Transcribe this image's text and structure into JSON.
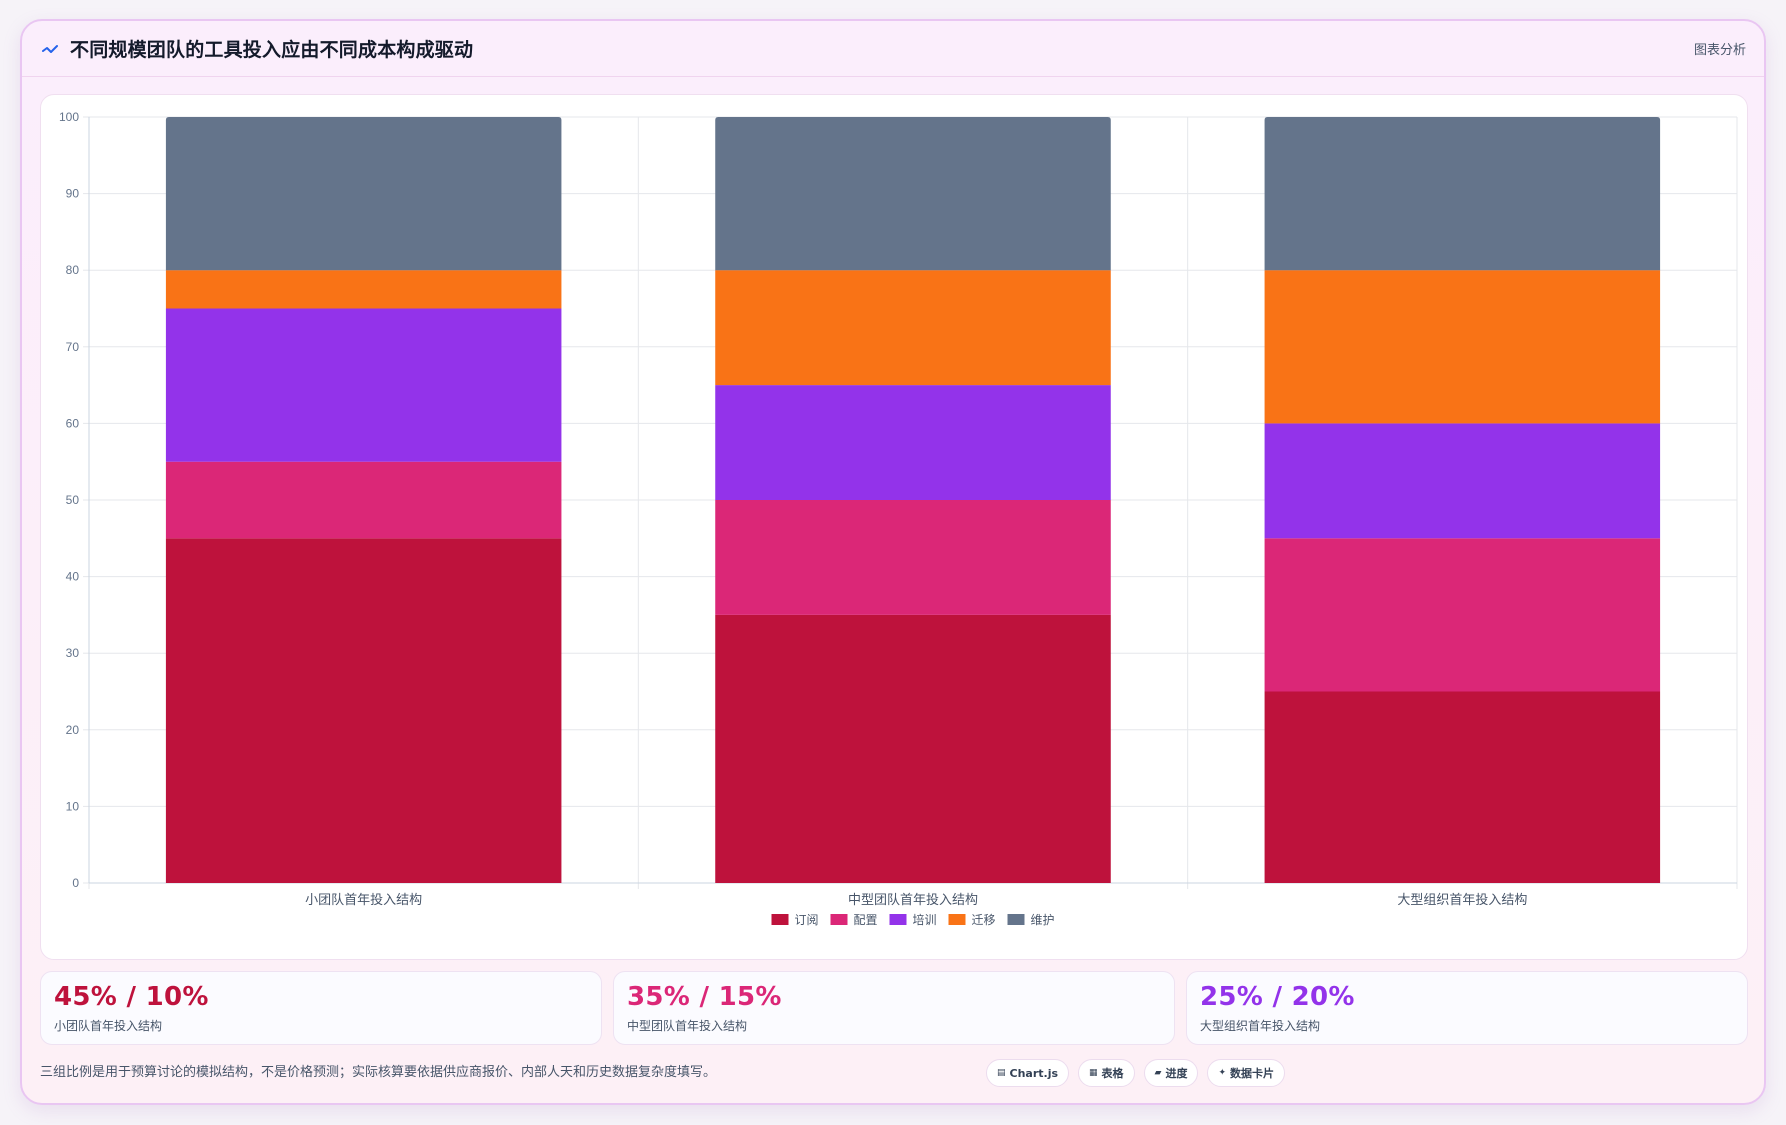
{
  "header": {
    "title": "不同规模团队的工具投入应由不同成本构成驱动",
    "action_label": "图表分析"
  },
  "chart_data": {
    "type": "bar",
    "stacked": true,
    "categories": [
      "小团队首年投入结构",
      "中型团队首年投入结构",
      "大型组织首年投入结构"
    ],
    "series": [
      {
        "name": "订阅",
        "color": "#be123c",
        "values": [
          45,
          35,
          25
        ]
      },
      {
        "name": "配置",
        "color": "#db2777",
        "values": [
          10,
          15,
          20
        ]
      },
      {
        "name": "培训",
        "color": "#9333ea",
        "values": [
          20,
          15,
          15
        ]
      },
      {
        "name": "迁移",
        "color": "#f97316",
        "values": [
          5,
          15,
          20
        ]
      },
      {
        "name": "维护",
        "color": "#64748b",
        "values": [
          20,
          20,
          20
        ]
      }
    ],
    "ylim": [
      0,
      100
    ],
    "yticks": [
      "0",
      "10",
      "20",
      "30",
      "40",
      "50",
      "60",
      "70",
      "80",
      "90",
      "100"
    ],
    "grid": true,
    "legend_position": "bottom"
  },
  "stats": [
    {
      "value": "45% / 10%",
      "label": "小团队首年投入结构",
      "color": "#be123c"
    },
    {
      "value": "35% / 15%",
      "label": "中型团队首年投入结构",
      "color": "#db2777"
    },
    {
      "value": "25% / 20%",
      "label": "大型组织首年投入结构",
      "color": "#9333ea"
    }
  ],
  "footnote": "三组比例是用于预算讨论的模拟结构，不是价格预测；实际核算要依据供应商报价、内部人天和历史数据复杂度填写。",
  "chips": [
    {
      "icon": "chart-icon",
      "glyph": "▤",
      "label": "Chart.js"
    },
    {
      "icon": "table-icon",
      "glyph": "▦",
      "label": "表格"
    },
    {
      "icon": "progress-icon",
      "glyph": "▰",
      "label": "进度"
    },
    {
      "icon": "sparkle-icon",
      "glyph": "✦",
      "label": "数据卡片"
    }
  ]
}
